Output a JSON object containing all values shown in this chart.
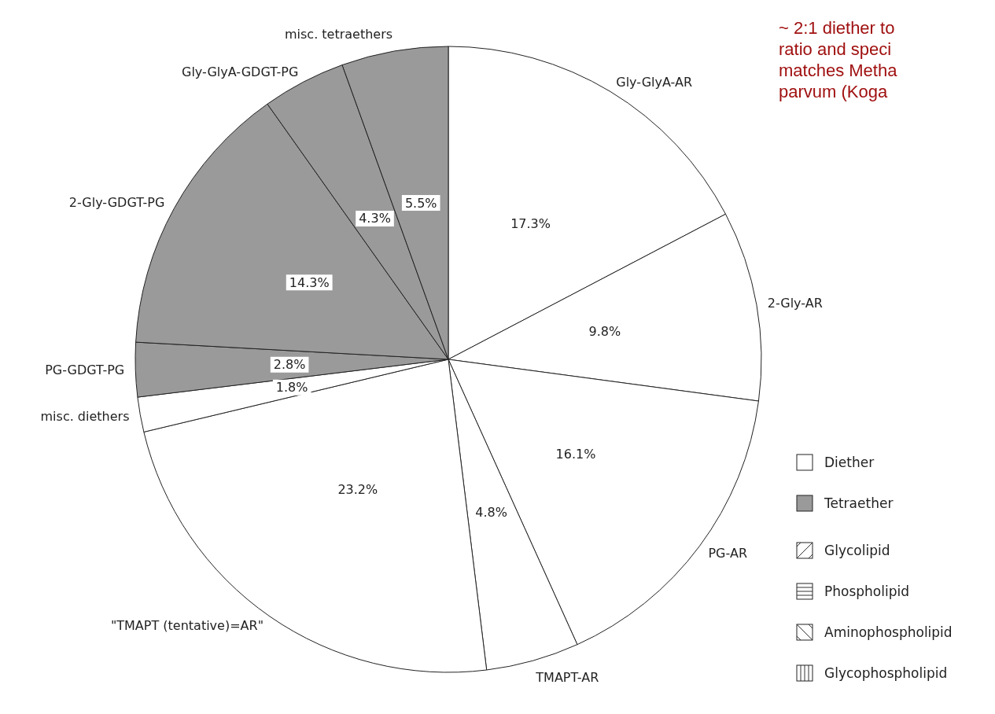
{
  "chart_data": {
    "type": "pie",
    "categories": [
      "Gly-GlyA-AR",
      "2-Gly-AR",
      "PG-AR",
      "TMAPT-AR",
      "\"TMAPT (tentative)=AR\"",
      "misc. diethers",
      "PG-GDGT-PG",
      "2-Gly-GDGT-PG",
      "Gly-GlyA-GDGT-PG",
      "misc. tetraethers"
    ],
    "values": [
      17.3,
      9.8,
      16.1,
      4.8,
      23.2,
      1.8,
      2.8,
      14.3,
      4.3,
      5.5
    ],
    "value_labels": [
      "17.3%",
      "9.8%",
      "16.1%",
      "4.8%",
      "23.2%",
      "1.8%",
      "2.8%",
      "14.3%",
      "4.3%",
      "5.5%"
    ],
    "colors": [
      "#ffffff",
      "#ffffff",
      "#ffffff",
      "#ffffff",
      "#ffffff",
      "#ffffff",
      "#9a9a9a",
      "#9a9a9a",
      "#9a9a9a",
      "#9a9a9a"
    ],
    "annotations": [
      "~ 2:1 diether to\nratio and speci\nmatches Metha\nparvum (Koga",
      "Diether",
      "Tetraether",
      "Glycolipid",
      "Phospholipid",
      "Aminophospholipid",
      "Glycophospholipid"
    ]
  }
}
